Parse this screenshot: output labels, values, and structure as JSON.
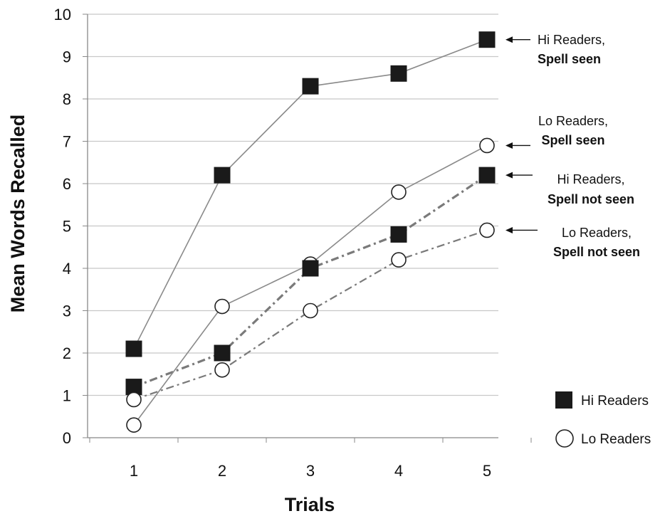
{
  "chart_data": {
    "type": "line",
    "xlabel": "Trials",
    "ylabel": "Mean Words Recalled",
    "categories": [
      "1",
      "2",
      "3",
      "4",
      "5"
    ],
    "yticks": [
      "0",
      "1",
      "2",
      "3",
      "4",
      "5",
      "6",
      "7",
      "8",
      "9",
      "10"
    ],
    "ylim": [
      0,
      10
    ],
    "grid": true,
    "series": [
      {
        "values": [
          2.1,
          6.2,
          8.3,
          8.6,
          9.4
        ],
        "marker": "square",
        "line_style": "solid",
        "annotation": [
          "Hi Readers,",
          "Spell seen"
        ]
      },
      {
        "values": [
          0.3,
          3.1,
          4.1,
          5.8,
          6.9
        ],
        "marker": "circle",
        "line_style": "solid",
        "annotation": [
          "Lo Readers,",
          "Spell seen"
        ]
      },
      {
        "values": [
          1.2,
          2.0,
          4.0,
          4.8,
          6.2
        ],
        "marker": "square",
        "line_style": "dash-dot",
        "annotation": [
          "Hi Readers,",
          "Spell not seen"
        ]
      },
      {
        "values": [
          0.9,
          1.6,
          3.0,
          4.2,
          4.9
        ],
        "marker": "circle",
        "line_style": "dash-dot",
        "annotation": [
          "Lo Readers,",
          "Spell not seen"
        ]
      }
    ],
    "legend": {
      "placement": "bottom-right",
      "items": [
        {
          "marker": "square",
          "label": "Hi Readers"
        },
        {
          "marker": "circle",
          "label": "Lo Readers"
        }
      ]
    },
    "colors": {
      "grid": "#c8c8c8",
      "line": "#8a8a8a",
      "dashdot": "#7a7a7a",
      "marker_fill": "#1a1a1a",
      "axis": "#888888"
    }
  }
}
